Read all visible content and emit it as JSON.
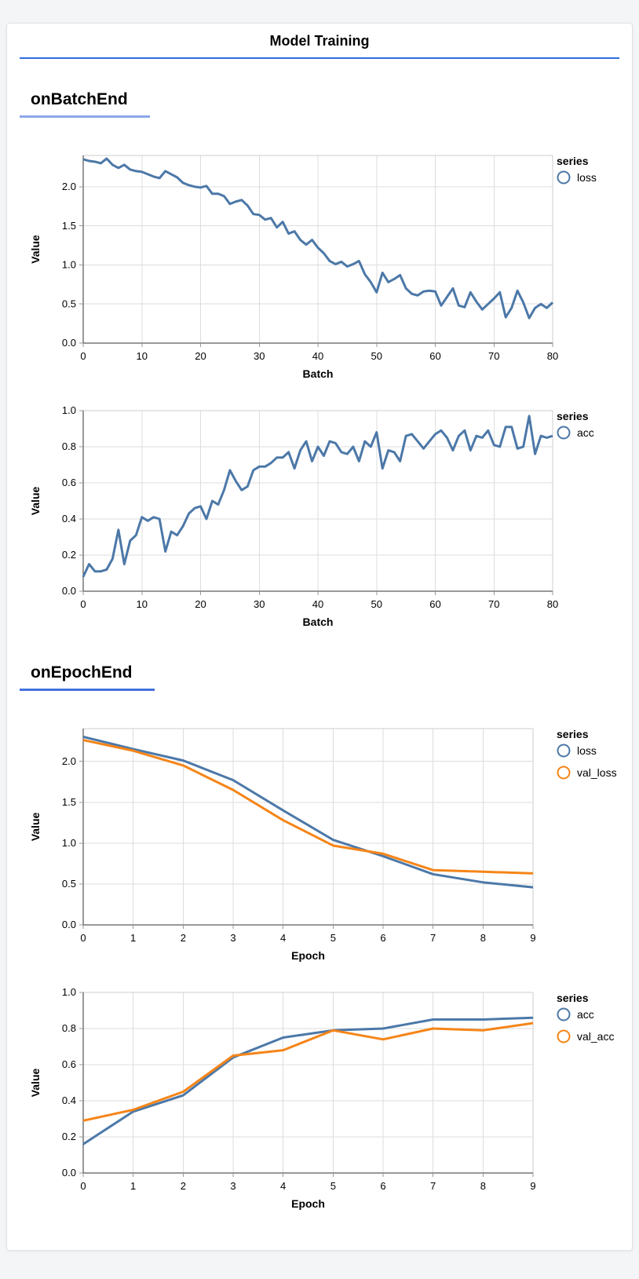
{
  "theme": {
    "page_background": "#f4f5f7",
    "card_background": "#ffffff",
    "title_underline_color": "#2d6ce0",
    "series_blue": "#4c78a8",
    "series_orange": "#f58518"
  },
  "header": {
    "title": "Model Training"
  },
  "sections": [
    {
      "label": "onBatchEnd",
      "underline_color": "#8aa7e9"
    },
    {
      "label": "onEpochEnd",
      "underline_color": "#4472dd"
    }
  ],
  "chart_data": [
    {
      "id": "batch-loss",
      "type": "line",
      "section": "onBatchEnd",
      "xlabel": "Batch",
      "ylabel": "Value",
      "legend_title": "series",
      "legend_position": "right",
      "grid": true,
      "xlim": [
        0,
        80
      ],
      "ylim": [
        0,
        2.4
      ],
      "xticks": [
        0,
        10,
        20,
        30,
        40,
        50,
        60,
        70,
        80
      ],
      "yticks": [
        0,
        0.5,
        1,
        1.5,
        2
      ],
      "x": [
        0,
        1,
        2,
        3,
        4,
        5,
        6,
        7,
        8,
        9,
        10,
        11,
        12,
        13,
        14,
        15,
        16,
        17,
        18,
        19,
        20,
        21,
        22,
        23,
        24,
        25,
        26,
        27,
        28,
        29,
        30,
        31,
        32,
        33,
        34,
        35,
        36,
        37,
        38,
        39,
        40,
        41,
        42,
        43,
        44,
        45,
        46,
        47,
        48,
        49,
        50,
        51,
        52,
        53,
        54,
        55,
        56,
        57,
        58,
        59,
        60,
        61,
        62,
        63,
        64,
        65,
        66,
        67,
        68,
        69,
        70,
        71,
        72,
        73,
        74,
        75,
        76,
        77,
        78,
        79,
        80
      ],
      "series": [
        {
          "name": "loss",
          "color": "#4c78a8",
          "values": [
            2.35,
            2.33,
            2.32,
            2.3,
            2.36,
            2.28,
            2.24,
            2.28,
            2.22,
            2.2,
            2.19,
            2.16,
            2.13,
            2.11,
            2.2,
            2.16,
            2.12,
            2.05,
            2.02,
            2.0,
            1.99,
            2.01,
            1.91,
            1.91,
            1.88,
            1.78,
            1.81,
            1.83,
            1.76,
            1.65,
            1.64,
            1.58,
            1.6,
            1.48,
            1.55,
            1.4,
            1.43,
            1.32,
            1.26,
            1.32,
            1.22,
            1.15,
            1.05,
            1.01,
            1.04,
            0.98,
            1.01,
            1.05,
            0.88,
            0.78,
            0.65,
            0.9,
            0.78,
            0.82,
            0.87,
            0.7,
            0.63,
            0.61,
            0.66,
            0.67,
            0.66,
            0.48,
            0.59,
            0.7,
            0.48,
            0.46,
            0.65,
            0.53,
            0.43,
            0.5,
            0.57,
            0.65,
            0.33,
            0.45,
            0.67,
            0.52,
            0.32,
            0.45,
            0.5,
            0.45,
            0.52
          ]
        }
      ]
    },
    {
      "id": "batch-acc",
      "type": "line",
      "section": "onBatchEnd",
      "xlabel": "Batch",
      "ylabel": "Value",
      "legend_title": "series",
      "legend_position": "right",
      "grid": true,
      "xlim": [
        0,
        80
      ],
      "ylim": [
        0,
        1.0
      ],
      "xticks": [
        0,
        10,
        20,
        30,
        40,
        50,
        60,
        70,
        80
      ],
      "yticks": [
        0,
        0.2,
        0.4,
        0.6,
        0.8,
        1.0
      ],
      "x": [
        0,
        1,
        2,
        3,
        4,
        5,
        6,
        7,
        8,
        9,
        10,
        11,
        12,
        13,
        14,
        15,
        16,
        17,
        18,
        19,
        20,
        21,
        22,
        23,
        24,
        25,
        26,
        27,
        28,
        29,
        30,
        31,
        32,
        33,
        34,
        35,
        36,
        37,
        38,
        39,
        40,
        41,
        42,
        43,
        44,
        45,
        46,
        47,
        48,
        49,
        50,
        51,
        52,
        53,
        54,
        55,
        56,
        57,
        58,
        59,
        60,
        61,
        62,
        63,
        64,
        65,
        66,
        67,
        68,
        69,
        70,
        71,
        72,
        73,
        74,
        75,
        76,
        77,
        78,
        79,
        80
      ],
      "series": [
        {
          "name": "acc",
          "color": "#4c78a8",
          "values": [
            0.08,
            0.15,
            0.11,
            0.11,
            0.12,
            0.18,
            0.34,
            0.15,
            0.28,
            0.31,
            0.41,
            0.39,
            0.41,
            0.4,
            0.22,
            0.33,
            0.31,
            0.36,
            0.43,
            0.46,
            0.47,
            0.4,
            0.5,
            0.48,
            0.56,
            0.67,
            0.61,
            0.56,
            0.58,
            0.67,
            0.69,
            0.69,
            0.71,
            0.74,
            0.74,
            0.77,
            0.68,
            0.78,
            0.83,
            0.72,
            0.8,
            0.75,
            0.83,
            0.82,
            0.77,
            0.76,
            0.8,
            0.72,
            0.83,
            0.8,
            0.88,
            0.68,
            0.78,
            0.77,
            0.72,
            0.86,
            0.87,
            0.83,
            0.79,
            0.83,
            0.87,
            0.89,
            0.85,
            0.78,
            0.86,
            0.89,
            0.78,
            0.86,
            0.85,
            0.89,
            0.81,
            0.8,
            0.91,
            0.91,
            0.79,
            0.8,
            0.97,
            0.76,
            0.86,
            0.85,
            0.86
          ]
        }
      ]
    },
    {
      "id": "epoch-loss",
      "type": "line",
      "section": "onEpochEnd",
      "xlabel": "Epoch",
      "ylabel": "Value",
      "legend_title": "series",
      "legend_position": "right",
      "grid": true,
      "xlim": [
        0,
        9
      ],
      "ylim": [
        0,
        2.4
      ],
      "xticks": [
        0,
        1,
        2,
        3,
        4,
        5,
        6,
        7,
        8,
        9
      ],
      "yticks": [
        0,
        0.5,
        1,
        1.5,
        2
      ],
      "x": [
        0,
        1,
        2,
        3,
        4,
        5,
        6,
        7,
        8,
        9
      ],
      "series": [
        {
          "name": "loss",
          "color": "#4c78a8",
          "values": [
            2.3,
            2.15,
            2.01,
            1.77,
            1.4,
            1.04,
            0.84,
            0.62,
            0.52,
            0.46
          ]
        },
        {
          "name": "val_loss",
          "color": "#f58518",
          "values": [
            2.26,
            2.13,
            1.95,
            1.65,
            1.28,
            0.97,
            0.87,
            0.67,
            0.65,
            0.63
          ]
        }
      ]
    },
    {
      "id": "epoch-acc",
      "type": "line",
      "section": "onEpochEnd",
      "xlabel": "Epoch",
      "ylabel": "Value",
      "legend_title": "series",
      "legend_position": "right",
      "grid": true,
      "xlim": [
        0,
        9
      ],
      "ylim": [
        0,
        1.0
      ],
      "xticks": [
        0,
        1,
        2,
        3,
        4,
        5,
        6,
        7,
        8,
        9
      ],
      "yticks": [
        0,
        0.2,
        0.4,
        0.6,
        0.8,
        1.0
      ],
      "x": [
        0,
        1,
        2,
        3,
        4,
        5,
        6,
        7,
        8,
        9
      ],
      "series": [
        {
          "name": "acc",
          "color": "#4c78a8",
          "values": [
            0.16,
            0.34,
            0.43,
            0.64,
            0.75,
            0.79,
            0.8,
            0.85,
            0.85,
            0.86
          ]
        },
        {
          "name": "val_acc",
          "color": "#f58518",
          "values": [
            0.29,
            0.35,
            0.45,
            0.65,
            0.68,
            0.79,
            0.74,
            0.8,
            0.79,
            0.83
          ]
        }
      ]
    }
  ]
}
